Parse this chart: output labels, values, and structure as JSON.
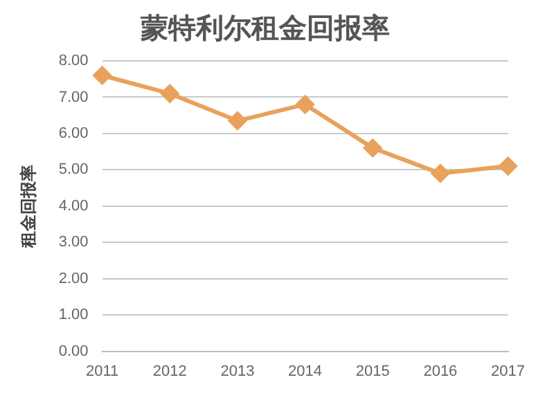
{
  "chart_data": {
    "type": "line",
    "title": "蒙特利尔租金回报率",
    "ylabel": "租金回报率",
    "categories": [
      "2011",
      "2012",
      "2013",
      "2014",
      "2015",
      "2016",
      "2017"
    ],
    "series": [
      {
        "color": "#e8a25c",
        "values": [
          7.6,
          7.1,
          6.35,
          6.8,
          5.6,
          4.9,
          5.1
        ]
      }
    ],
    "ylim": [
      0,
      8
    ],
    "yticks": [
      {
        "value": 0,
        "label": "0.00"
      },
      {
        "value": 1,
        "label": "1.00"
      },
      {
        "value": 2,
        "label": "2.00"
      },
      {
        "value": 3,
        "label": "3.00"
      },
      {
        "value": 4,
        "label": "4.00"
      },
      {
        "value": 5,
        "label": "5.00"
      },
      {
        "value": 6,
        "label": "6.00"
      },
      {
        "value": 7,
        "label": "7.00"
      },
      {
        "value": 8,
        "label": "8.00"
      }
    ],
    "grid": "y",
    "marker": "diamond",
    "legend": false
  }
}
